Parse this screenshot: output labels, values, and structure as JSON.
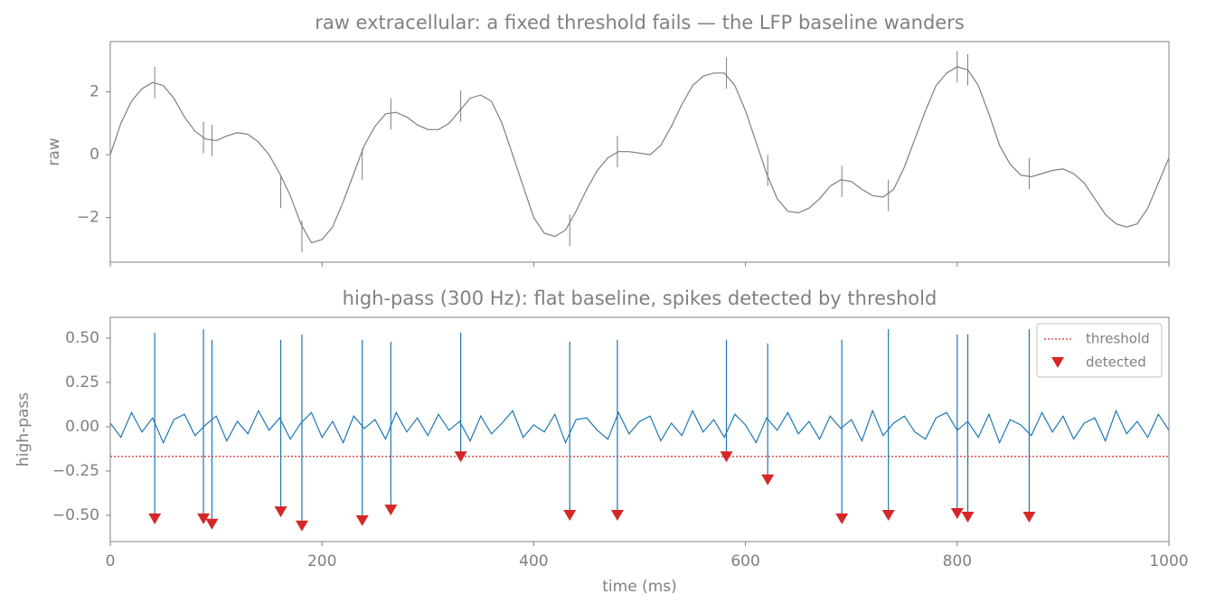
{
  "chart_data": [
    {
      "type": "line",
      "title": "raw extracellular: a fixed threshold fails — the LFP baseline wanders",
      "ylabel": "raw",
      "color": "#7f7f7f",
      "xlim": [
        0,
        1000
      ],
      "xticks": [
        0,
        200,
        400,
        600,
        800,
        1000
      ],
      "xticklabels": false,
      "ylim": [
        -3.42,
        3.6
      ],
      "yticks": [
        2,
        0,
        {
          "value": -2,
          "label": "−2"
        }
      ],
      "grid": false,
      "x": [
        0,
        10,
        20,
        30,
        40,
        50,
        60,
        70,
        80,
        90,
        100,
        110,
        120,
        130,
        140,
        150,
        160,
        170,
        180,
        190,
        200,
        210,
        220,
        230,
        240,
        250,
        260,
        270,
        280,
        290,
        300,
        310,
        320,
        330,
        340,
        350,
        360,
        370,
        380,
        390,
        400,
        410,
        420,
        430,
        440,
        450,
        460,
        470,
        480,
        490,
        500,
        510,
        520,
        530,
        540,
        550,
        560,
        570,
        580,
        590,
        600,
        610,
        620,
        630,
        640,
        650,
        660,
        670,
        680,
        690,
        700,
        710,
        720,
        730,
        740,
        750,
        760,
        770,
        780,
        790,
        800,
        810,
        820,
        830,
        840,
        850,
        860,
        870,
        880,
        890,
        900,
        910,
        920,
        930,
        940,
        950,
        960,
        970,
        980,
        990,
        1000
      ],
      "values": [
        0,
        1.0,
        1.7,
        2.1,
        2.3,
        2.2,
        1.8,
        1.2,
        0.75,
        0.5,
        0.45,
        0.6,
        0.7,
        0.65,
        0.4,
        0,
        -0.6,
        -1.3,
        -2.2,
        -2.8,
        -2.7,
        -2.3,
        -1.5,
        -0.6,
        0.3,
        0.9,
        1.3,
        1.35,
        1.2,
        0.95,
        0.8,
        0.8,
        1.0,
        1.4,
        1.8,
        1.9,
        1.7,
        1.0,
        0,
        -1.0,
        -2.0,
        -2.5,
        -2.6,
        -2.4,
        -1.8,
        -1.1,
        -0.5,
        -0.1,
        0.1,
        0.1,
        0.05,
        0.0,
        0.3,
        0.9,
        1.6,
        2.2,
        2.5,
        2.6,
        2.6,
        2.2,
        1.4,
        0.4,
        -0.6,
        -1.4,
        -1.8,
        -1.85,
        -1.7,
        -1.4,
        -1.0,
        -0.8,
        -0.85,
        -1.1,
        -1.3,
        -1.35,
        -1.1,
        -0.4,
        0.5,
        1.4,
        2.2,
        2.6,
        2.8,
        2.7,
        2.2,
        1.3,
        0.3,
        -0.3,
        -0.65,
        -0.7,
        -0.6,
        -0.5,
        -0.45,
        -0.6,
        -0.9,
        -1.4,
        -1.9,
        -2.2,
        -2.3,
        -2.2,
        -1.7,
        -0.9,
        -0.1
      ],
      "spikes": {
        "x": [
          42,
          88,
          96,
          161,
          181,
          238,
          265,
          331,
          434,
          479,
          582,
          621,
          691,
          735,
          800,
          810,
          868
        ],
        "values": [
          2.3,
          0.55,
          0.45,
          -1.2,
          -2.6,
          -0.3,
          1.3,
          1.55,
          -2.4,
          0.1,
          2.6,
          -0.5,
          -0.85,
          -1.3,
          2.8,
          2.7,
          -0.6
        ]
      }
    },
    {
      "type": "line",
      "title": "high-pass (300 Hz): flat baseline, spikes detected by threshold",
      "ylabel": "high-pass",
      "xlabel": "time (ms)",
      "color": "#1f77b4",
      "xlim": [
        0,
        1000
      ],
      "xticks": [
        0,
        200,
        400,
        600,
        800,
        1000
      ],
      "ylim": [
        -0.648,
        0.617
      ],
      "yticks": [
        {
          "value": 0.5,
          "label": "0.50"
        },
        {
          "value": 0.25,
          "label": "0.25"
        },
        {
          "value": 0,
          "label": "0.00"
        },
        {
          "value": -0.25,
          "label": "−0.25"
        },
        {
          "value": -0.5,
          "label": "−0.50"
        }
      ],
      "grid": false,
      "legend": "upper right",
      "x": [
        0,
        10,
        20,
        30,
        40,
        50,
        60,
        70,
        80,
        90,
        100,
        110,
        120,
        130,
        140,
        150,
        160,
        170,
        180,
        190,
        200,
        210,
        220,
        230,
        240,
        250,
        260,
        270,
        280,
        290,
        300,
        310,
        320,
        330,
        340,
        350,
        360,
        370,
        380,
        390,
        400,
        410,
        420,
        430,
        440,
        450,
        460,
        470,
        480,
        490,
        500,
        510,
        520,
        530,
        540,
        550,
        560,
        570,
        580,
        590,
        600,
        610,
        620,
        630,
        640,
        650,
        660,
        670,
        680,
        690,
        700,
        710,
        720,
        730,
        740,
        750,
        760,
        770,
        780,
        790,
        800,
        810,
        820,
        830,
        840,
        850,
        860,
        870,
        880,
        890,
        900,
        910,
        920,
        930,
        940,
        950,
        960,
        970,
        980,
        990,
        1000
      ],
      "values": [
        0.02,
        -0.06,
        0.08,
        -0.03,
        0.05,
        -0.09,
        0.04,
        0.07,
        -0.05,
        0.01,
        0.06,
        -0.08,
        0.03,
        -0.04,
        0.09,
        -0.02,
        0.05,
        -0.07,
        0.02,
        0.08,
        -0.06,
        0.03,
        -0.09,
        0.06,
        -0.01,
        0.04,
        -0.07,
        0.08,
        -0.03,
        0.05,
        -0.05,
        0.07,
        -0.02,
        0.03,
        -0.08,
        0.06,
        -0.04,
        0.02,
        0.09,
        -0.06,
        0.01,
        -0.03,
        0.07,
        -0.09,
        0.04,
        0.05,
        -0.02,
        -0.07,
        0.08,
        -0.04,
        0.03,
        0.06,
        -0.08,
        0.02,
        -0.05,
        0.09,
        -0.03,
        0.04,
        -0.06,
        0.07,
        0.01,
        -0.09,
        0.05,
        -0.02,
        0.08,
        -0.04,
        0.03,
        -0.07,
        0.06,
        -0.01,
        0.04,
        -0.08,
        0.09,
        -0.05,
        0.02,
        0.06,
        -0.03,
        -0.07,
        0.05,
        0.08,
        -0.02,
        0.03,
        -0.06,
        0.07,
        -0.09,
        0.04,
        0.01,
        -0.05,
        0.08,
        -0.03,
        0.06,
        -0.07,
        0.02,
        0.05,
        -0.08,
        0.09,
        -0.04,
        0.03,
        -0.06,
        0.07,
        -0.02
      ],
      "threshold": {
        "name": "threshold",
        "value": -0.168,
        "color": "#d62728"
      },
      "detected": {
        "name": "detected",
        "color": "#d62728",
        "x": [
          42,
          88,
          96,
          161,
          181,
          238,
          265,
          331,
          434,
          479,
          582,
          621,
          691,
          735,
          800,
          810,
          868
        ],
        "values": [
          -0.52,
          -0.52,
          -0.55,
          -0.48,
          -0.56,
          -0.53,
          -0.47,
          -0.17,
          -0.5,
          -0.5,
          -0.17,
          -0.3,
          -0.52,
          -0.5,
          -0.49,
          -0.51,
          -0.51
        ],
        "peaks": [
          0.53,
          0.55,
          0.49,
          0.49,
          0.52,
          0.49,
          0.48,
          0.53,
          0.48,
          0.49,
          0.49,
          0.47,
          0.49,
          0.55,
          0.52,
          0.52,
          0.55
        ]
      }
    }
  ]
}
